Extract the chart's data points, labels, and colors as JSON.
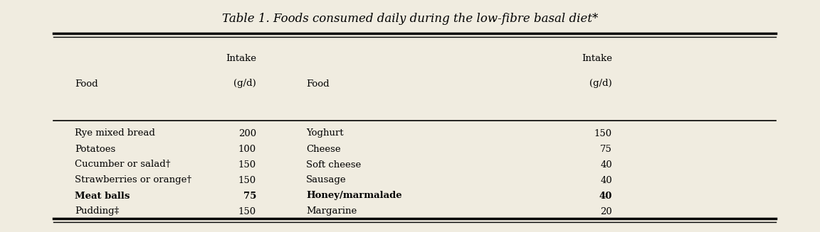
{
  "title": "Table 1. Foods consumed daily during the low-fibre basal diet*",
  "left_foods": [
    "Rye mixed bread",
    "Potatoes",
    "Cucumber or salad†",
    "Strawberries or orange†",
    "Meat balls",
    "Pudding‡"
  ],
  "left_intakes": [
    "200",
    "100",
    "150",
    "150",
    "75",
    "150"
  ],
  "right_foods": [
    "Yoghurt",
    "Cheese",
    "Soft cheese",
    "Sausage",
    "Honey/marmalade",
    "Margarine"
  ],
  "right_intakes": [
    "150",
    "75",
    "40",
    "40",
    "40",
    "20"
  ],
  "bold_rows": [
    4
  ],
  "bg_color": "#f0ece0",
  "text_color": "#000000",
  "line_color": "#000000",
  "figsize": [
    11.52,
    3.27
  ],
  "dpi": 100
}
